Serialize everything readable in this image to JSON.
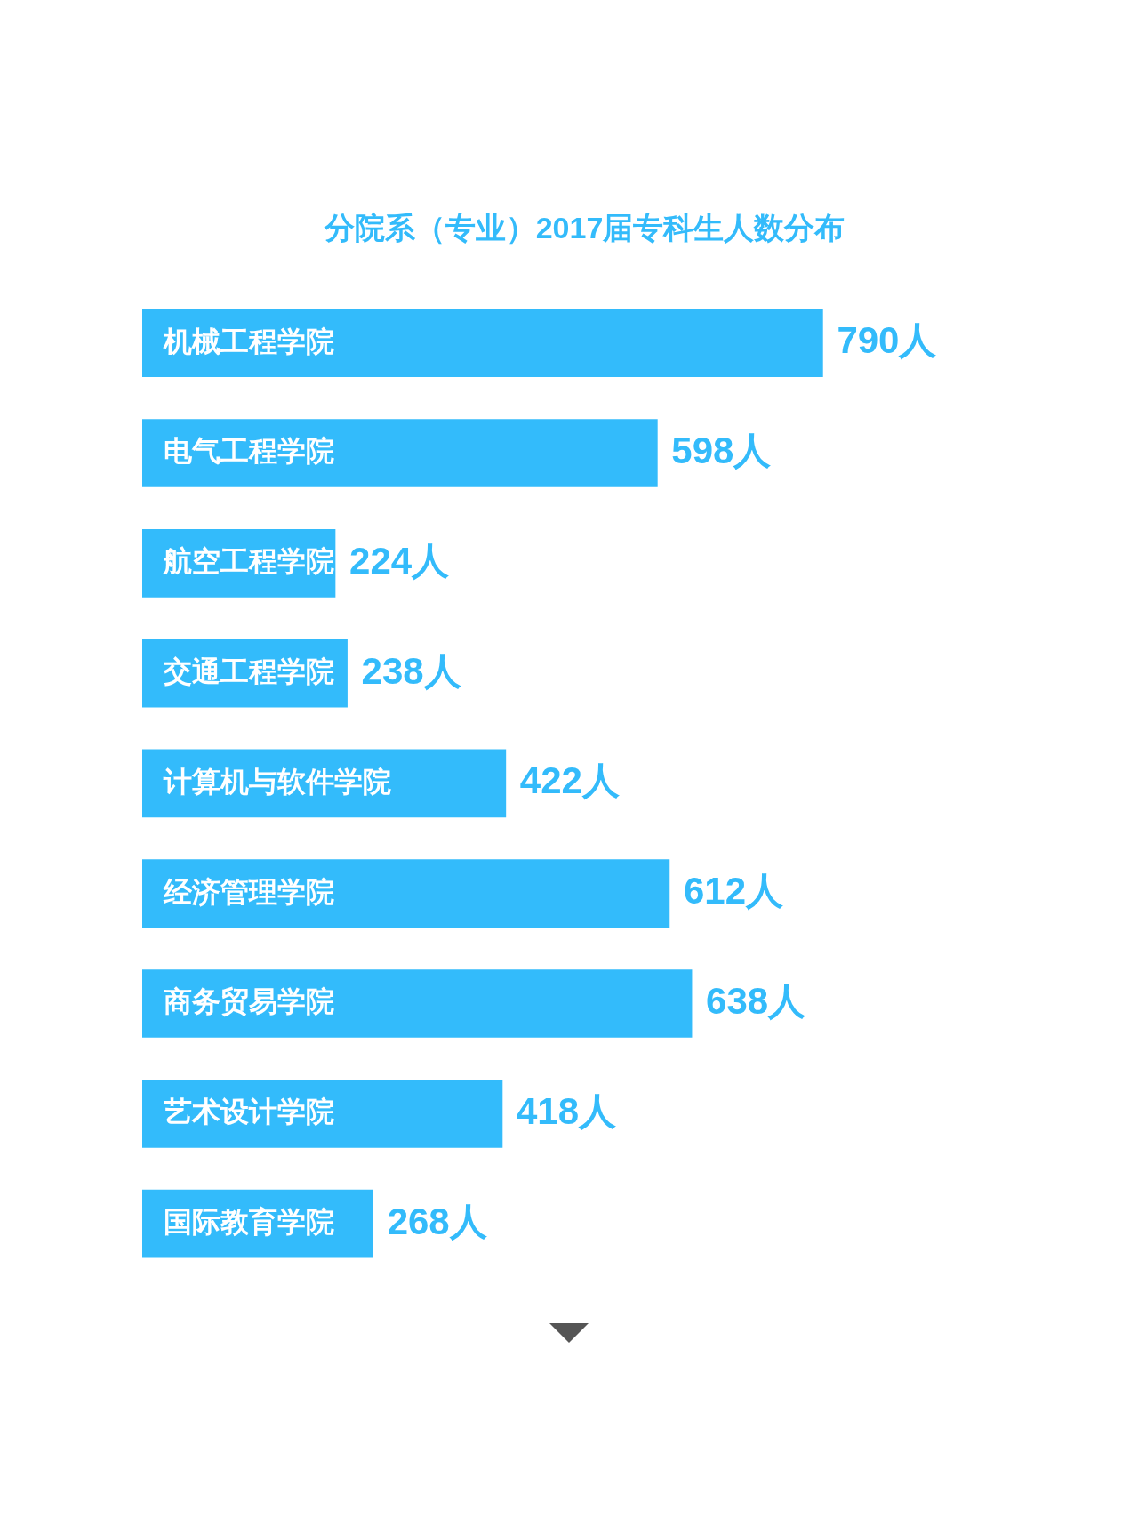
{
  "chart_data": {
    "type": "bar",
    "orientation": "horizontal",
    "title": "分院系（专业）2017届专科生人数分布",
    "categories": [
      "机械工程学院",
      "电气工程学院",
      "航空工程学院",
      "交通工程学院",
      "计算机与软件学院",
      "经济管理学院",
      "商务贸易学院",
      "艺术设计学院",
      "国际教育学院"
    ],
    "values": [
      790,
      598,
      224,
      238,
      422,
      612,
      638,
      418,
      268
    ],
    "value_labels": [
      "790人",
      "598人",
      "224人",
      "238人",
      "422人",
      "612人",
      "638人",
      "418人",
      "268人"
    ],
    "color": "#33bbfb"
  }
}
